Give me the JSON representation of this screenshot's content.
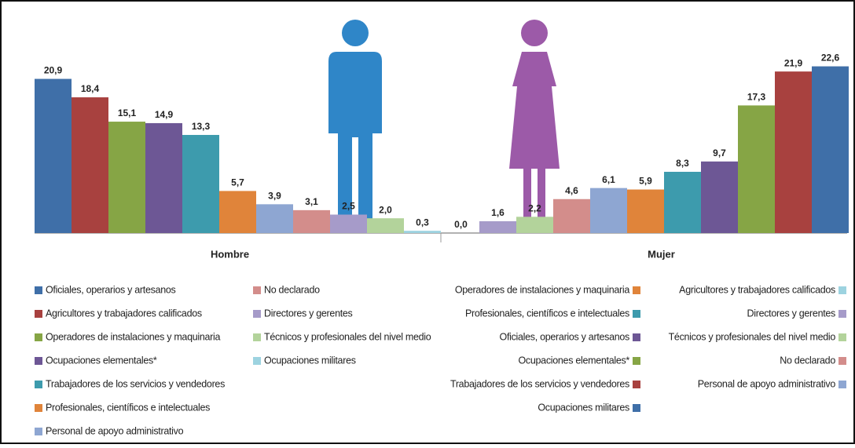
{
  "chart_data": [
    {
      "type": "bar",
      "label": "Hombre",
      "categories": [
        "Oficiales, operarios y artesanos",
        "Agricultores y trabajadores calificados",
        "Operadores de instalaciones y maquinaria",
        "Ocupaciones elementales*",
        "Trabajadores de los servicios y vendedores",
        "Profesionales, científicos e intelectuales",
        "Personal de apoyo administrativo",
        "No declarado",
        "Directores y gerentes",
        "Técnicos y profesionales del nivel medio",
        "Ocupaciones militares"
      ],
      "colors": [
        "#3f6fa8",
        "#a8413f",
        "#86a545",
        "#6d5795",
        "#3d9bad",
        "#e0843a",
        "#8ea6d2",
        "#d38d8b",
        "#a69bc9",
        "#b3d39b",
        "#9dd3e0"
      ],
      "values": [
        20.9,
        18.4,
        15.1,
        14.9,
        13.3,
        5.7,
        3.9,
        3.1,
        2.5,
        2.0,
        0.3
      ],
      "value_labels": [
        "20,9",
        "18,4",
        "15,1",
        "14,9",
        "13,3",
        "5,7",
        "3,9",
        "3,1",
        "2,5",
        "2,0",
        "0,3"
      ]
    },
    {
      "type": "bar",
      "label": "Mujer",
      "categories": [
        "Agricultores y trabajadores calificados",
        "Directores y gerentes",
        "Técnicos y profesionales del nivel medio",
        "No declarado",
        "Personal de apoyo administrativo",
        "Operadores de instalaciones y maquinaria",
        "Profesionales, científicos e intelectuales",
        "Oficiales, operarios y artesanos",
        "Ocupaciones elementales*",
        "Trabajadores de los servicios y vendedores",
        "Ocupaciones militares"
      ],
      "colors": [
        "#9dd3e0",
        "#a69bc9",
        "#b3d39b",
        "#d38d8b",
        "#8ea6d2",
        "#e0843a",
        "#3d9bad",
        "#6d5795",
        "#86a545",
        "#a8413f",
        "#3f6fa8"
      ],
      "values": [
        0.0,
        1.6,
        2.2,
        4.6,
        6.1,
        5.9,
        8.3,
        9.7,
        17.3,
        21.9,
        22.6
      ],
      "value_labels": [
        "0,0",
        "1,6",
        "2,2",
        "4,6",
        "6,1",
        "5,9",
        "8,3",
        "9,7",
        "17,3",
        "21,9",
        "22,6"
      ]
    }
  ]
}
